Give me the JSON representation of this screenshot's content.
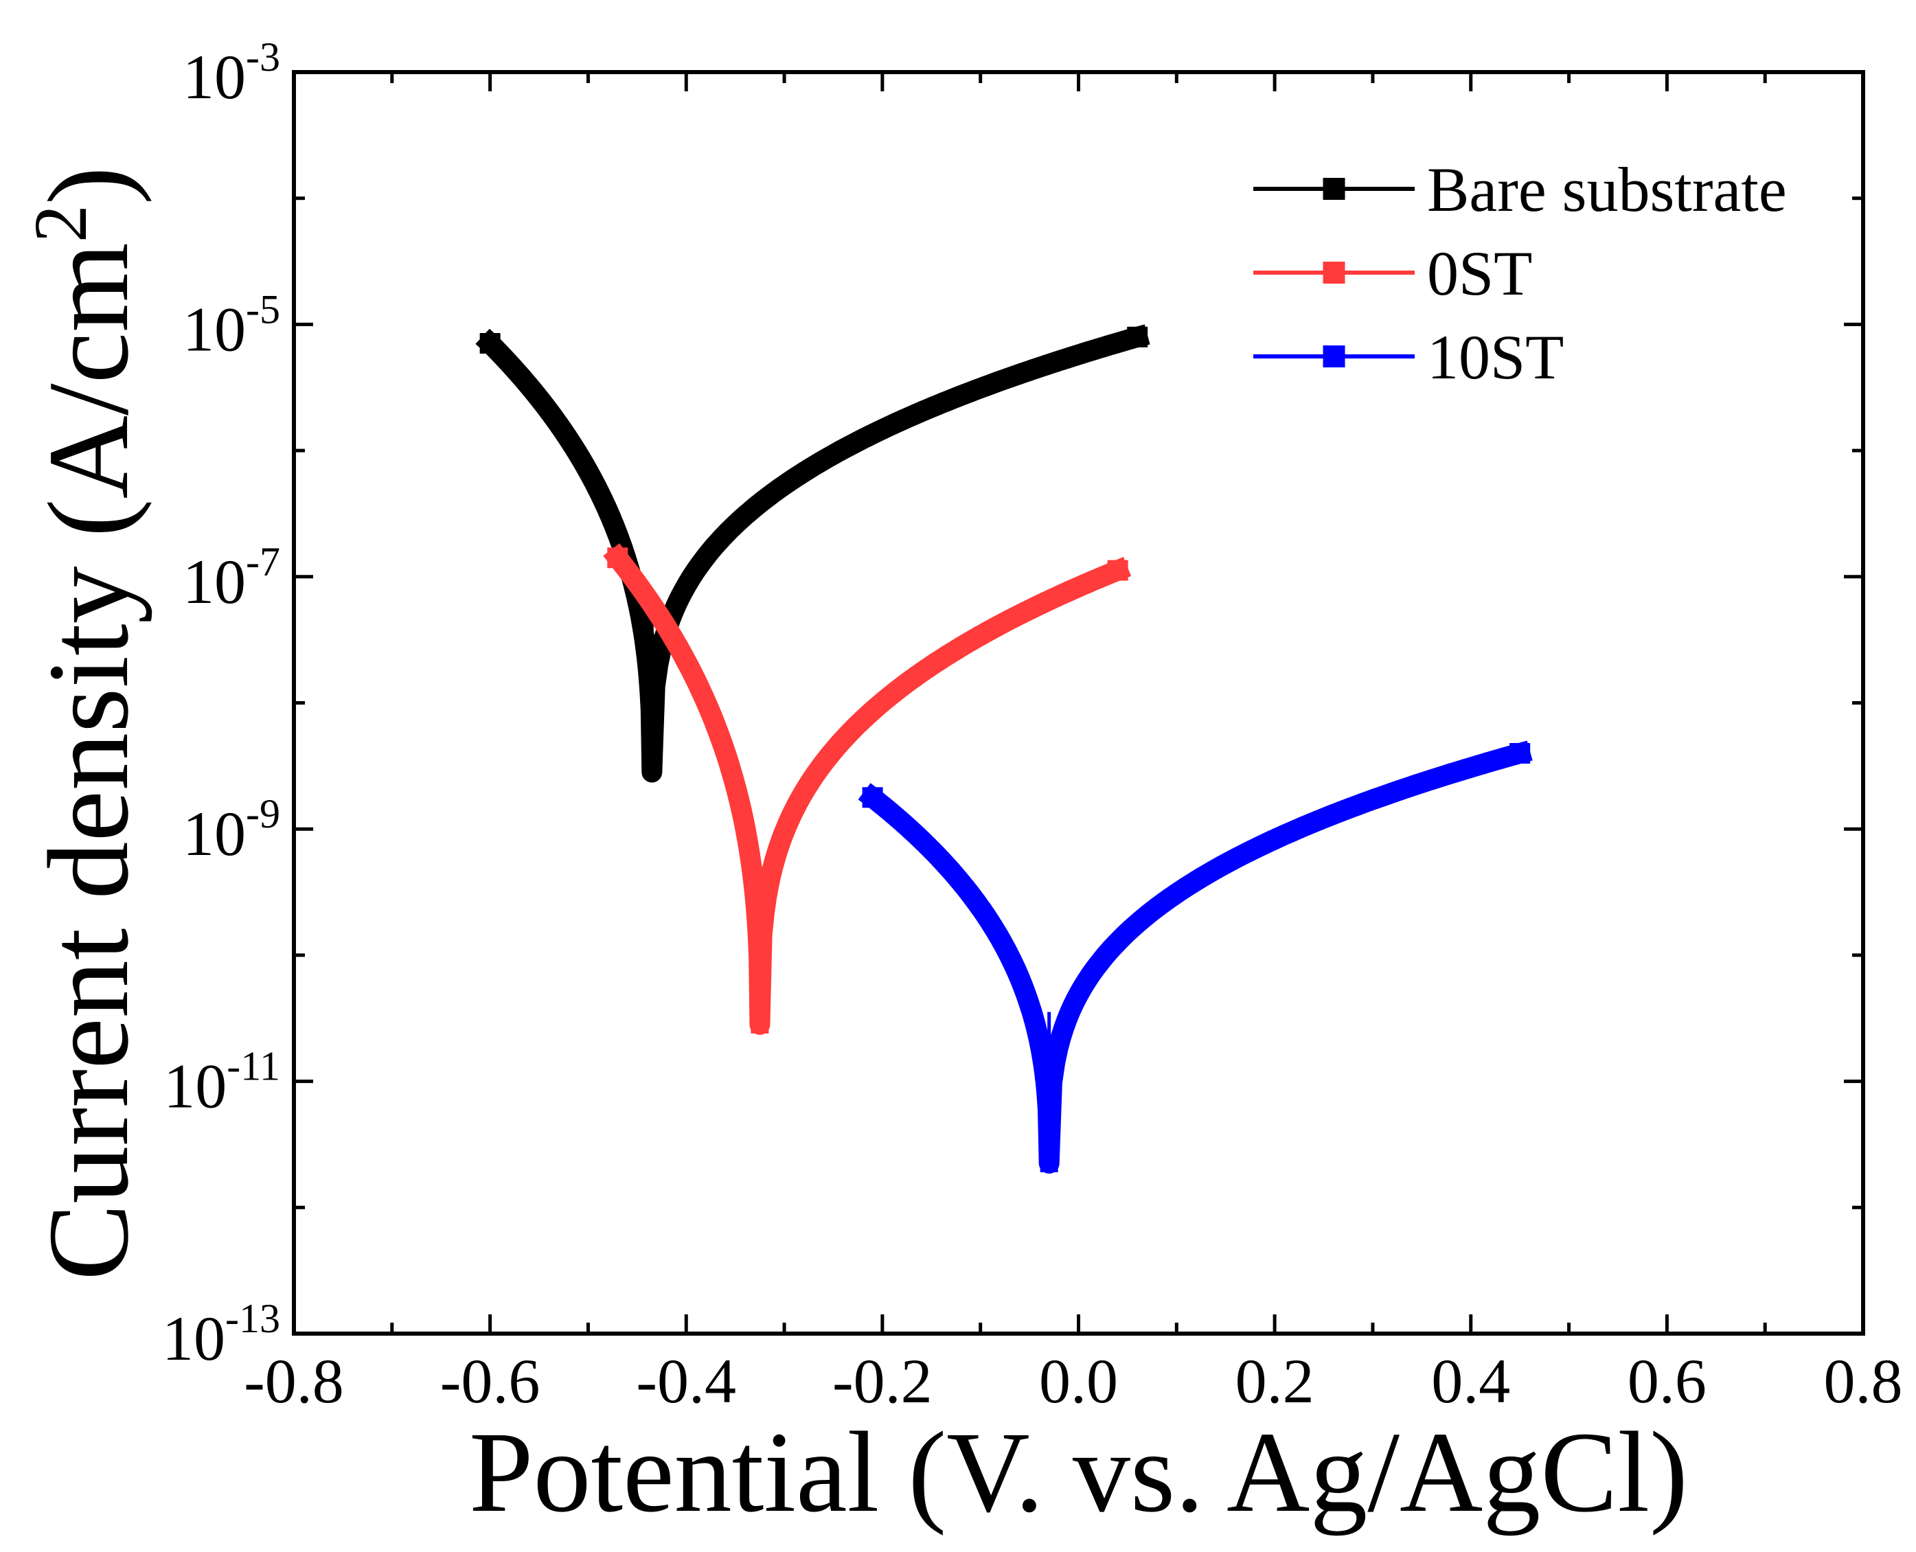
{
  "chart_data": {
    "type": "line",
    "title": "",
    "xlabel": "Potential (V. vs. Ag/AgCl)",
    "ylabel_main": "Current density (A/cm",
    "ylabel_sup": "2",
    "ylabel_close": ")",
    "xscale": "linear",
    "yscale": "log",
    "xlim": [
      -0.8,
      0.8
    ],
    "ylim_exp": [
      -13,
      -3
    ],
    "x_ticks": [
      {
        "v": -0.8,
        "label": "-0.8"
      },
      {
        "v": -0.6,
        "label": "-0.6"
      },
      {
        "v": -0.4,
        "label": "-0.4"
      },
      {
        "v": -0.2,
        "label": "-0.2"
      },
      {
        "v": 0.0,
        "label": "0.0"
      },
      {
        "v": 0.2,
        "label": "0.2"
      },
      {
        "v": 0.4,
        "label": "0.4"
      },
      {
        "v": 0.6,
        "label": "0.6"
      },
      {
        "v": 0.8,
        "label": "0.8"
      }
    ],
    "y_ticks": [
      {
        "exp": -3,
        "base": "10",
        "sup": "-3"
      },
      {
        "exp": -5,
        "base": "10",
        "sup": "-5"
      },
      {
        "exp": -7,
        "base": "10",
        "sup": "-7"
      },
      {
        "exp": -9,
        "base": "10",
        "sup": "-9"
      },
      {
        "exp": -11,
        "base": "10",
        "sup": "-11"
      },
      {
        "exp": -13,
        "base": "10",
        "sup": "-13"
      }
    ],
    "legend_position": "top-right",
    "series": [
      {
        "name": "Bare substrate",
        "color": "#000000",
        "marker": "square",
        "ecorr": -0.435,
        "icorr_log": -8.55,
        "start": [
          -0.6,
          -5.15
        ],
        "end": [
          0.06,
          -5.1
        ],
        "tail": [
          [
            -0.435,
            -7.8
          ],
          [
            -0.435,
            -8.4
          ]
        ]
      },
      {
        "name": "0ST",
        "color": "#ff3b3b",
        "marker": "square",
        "ecorr": -0.325,
        "icorr_log": -10.55,
        "start": [
          -0.47,
          -6.85
        ],
        "end": [
          0.04,
          -6.95
        ],
        "tail": [
          [
            -0.325,
            -9.5
          ],
          [
            -0.325,
            -10.55
          ]
        ]
      },
      {
        "name": "10ST",
        "color": "#0000ff",
        "marker": "square",
        "ecorr": -0.03,
        "icorr_log": -11.65,
        "start": [
          -0.21,
          -8.75
        ],
        "end": [
          0.45,
          -8.4
        ],
        "tail": [
          [
            -0.03,
            -11.1
          ],
          [
            -0.03,
            -11.5
          ],
          [
            -0.03,
            -11.65
          ]
        ]
      }
    ]
  }
}
